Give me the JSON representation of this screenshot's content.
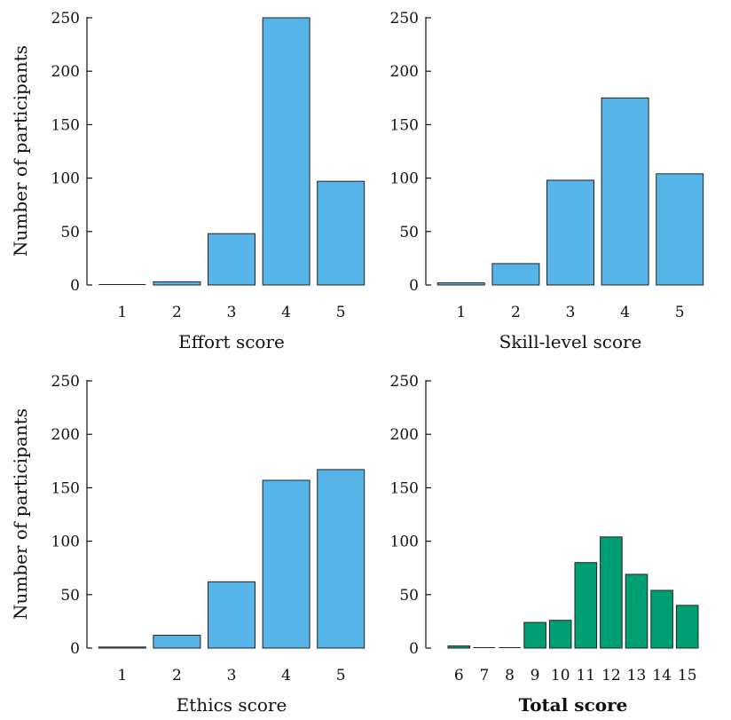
{
  "chart_data": [
    {
      "type": "bar",
      "categories": [
        "1",
        "2",
        "3",
        "4",
        "5"
      ],
      "values": [
        0,
        3,
        48,
        250,
        97
      ],
      "xlabel": "Effort score",
      "xlabel_bold": false,
      "ylabel": "Number of participants",
      "ylim": [
        0,
        250
      ],
      "yticks": [
        "0",
        "50",
        "100",
        "150",
        "200",
        "250"
      ],
      "color": "#56B4E9"
    },
    {
      "type": "bar",
      "categories": [
        "1",
        "2",
        "3",
        "4",
        "5"
      ],
      "values": [
        2,
        20,
        98,
        175,
        104
      ],
      "xlabel": "Skill-level score",
      "xlabel_bold": false,
      "ylabel": "",
      "ylim": [
        0,
        250
      ],
      "yticks": [
        "0",
        "50",
        "100",
        "150",
        "200",
        "250"
      ],
      "color": "#56B4E9"
    },
    {
      "type": "bar",
      "categories": [
        "1",
        "2",
        "3",
        "4",
        "5"
      ],
      "values": [
        1,
        12,
        62,
        157,
        167
      ],
      "xlabel": "Ethics score",
      "xlabel_bold": false,
      "ylabel": "Number of participants",
      "ylim": [
        0,
        250
      ],
      "yticks": [
        "0",
        "50",
        "100",
        "150",
        "200",
        "250"
      ],
      "color": "#56B4E9"
    },
    {
      "type": "bar",
      "categories": [
        "6",
        "7",
        "8",
        "9",
        "10",
        "11",
        "12",
        "13",
        "14",
        "15"
      ],
      "values": [
        2,
        0,
        0,
        24,
        26,
        80,
        104,
        69,
        54,
        40
      ],
      "xlabel": "Total score",
      "xlabel_bold": true,
      "ylabel": "",
      "ylim": [
        0,
        250
      ],
      "yticks": [
        "0",
        "50",
        "100",
        "150",
        "200",
        "250"
      ],
      "color": "#009E73"
    }
  ]
}
